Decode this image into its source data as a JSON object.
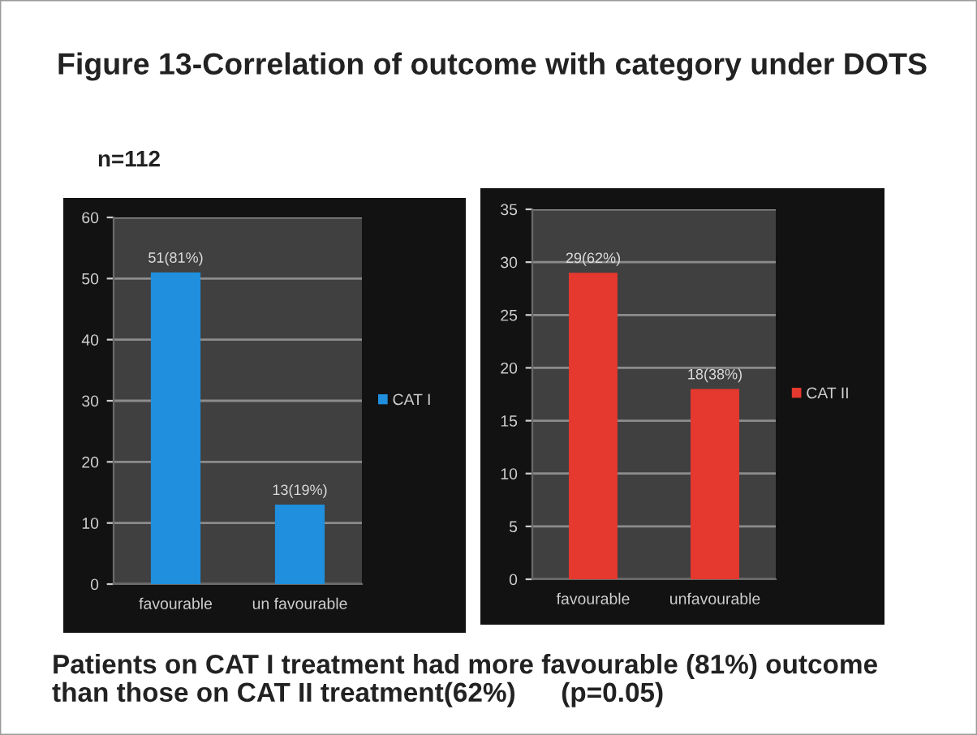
{
  "chart_data": [
    {
      "type": "bar",
      "title": "Figure 13-Correlation of outcome with category under DOTS",
      "subtitle": "n=112",
      "categories": [
        "favourable",
        "un favourable"
      ],
      "series": [
        {
          "name": "CAT I",
          "color": "#1f8fde",
          "values": [
            51,
            13
          ],
          "value_labels": [
            "51(81%)",
            "13(19%)"
          ]
        }
      ],
      "ylim": [
        0,
        60
      ],
      "yticks": [
        0,
        10,
        20,
        30,
        40,
        50,
        60
      ],
      "grid": "y",
      "legend": "right"
    },
    {
      "type": "bar",
      "categories": [
        "favourable",
        "unfavourable"
      ],
      "series": [
        {
          "name": "CAT II",
          "color": "#e5382e",
          "values": [
            29,
            18
          ],
          "value_labels": [
            "29(62%)",
            "18(38%)"
          ]
        }
      ],
      "ylim": [
        0,
        35
      ],
      "yticks": [
        0,
        5,
        10,
        15,
        20,
        25,
        30,
        35
      ],
      "grid": "y",
      "legend": "right",
      "annotations": [
        "Patients on CAT I treatment had more favourable (81%) outcome\nthan those on CAT II treatment(62%)      (p=0.05)"
      ]
    }
  ]
}
